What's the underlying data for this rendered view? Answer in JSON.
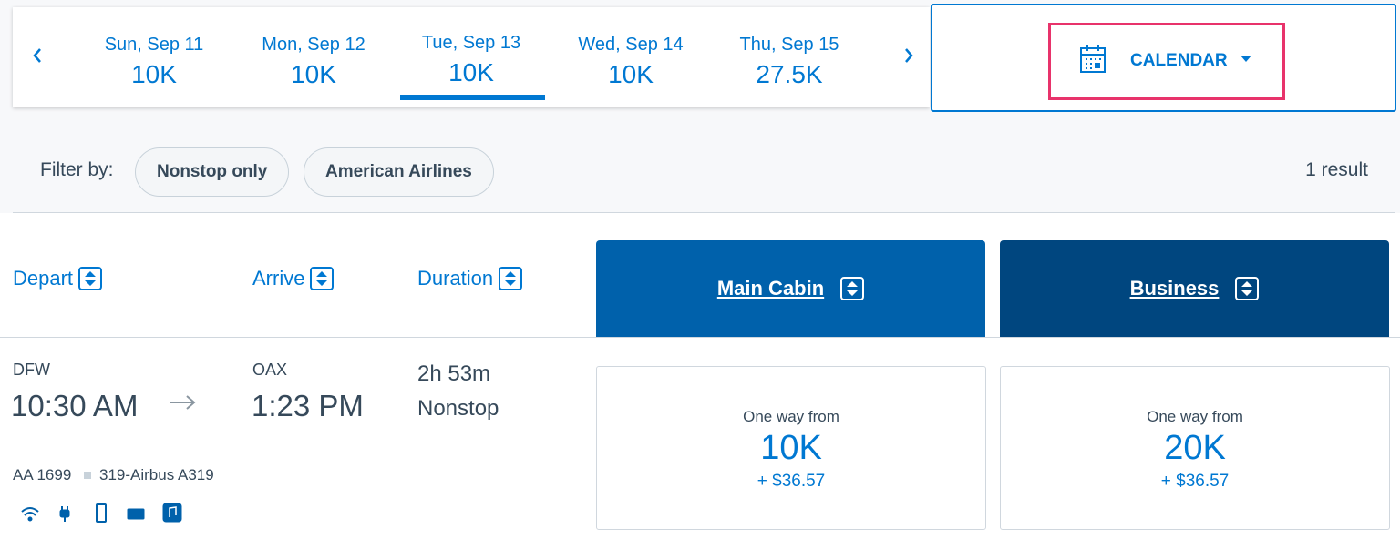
{
  "date_nav": {
    "dates": [
      {
        "day": "Sun, Sep 11",
        "price": "10K"
      },
      {
        "day": "Mon, Sep 12",
        "price": "10K"
      },
      {
        "day": "Tue, Sep 13",
        "price": "10K"
      },
      {
        "day": "Wed, Sep 14",
        "price": "10K"
      },
      {
        "day": "Thu, Sep 15",
        "price": "27.5K"
      }
    ],
    "calendar_button": "CALENDAR"
  },
  "filters": {
    "label": "Filter by:",
    "chips": [
      "Nonstop only",
      "American Airlines"
    ],
    "result_count": "1 result"
  },
  "columns": {
    "depart": "Depart",
    "arrive": "Arrive",
    "duration": "Duration",
    "main_cabin": "Main Cabin",
    "business": "Business"
  },
  "flight": {
    "origin": "DFW",
    "depart_time": "10:30 AM",
    "destination": "OAX",
    "arrive_time": "1:23 PM",
    "duration": "2h 53m",
    "stops": "Nonstop",
    "flight_number": "AA 1699",
    "aircraft": "319-Airbus A319",
    "fares": [
      {
        "label": "One way from",
        "miles": "10K",
        "fee": "+ $36.57"
      },
      {
        "label": "One way from",
        "miles": "20K",
        "fee": "+ $36.57"
      }
    ]
  }
}
